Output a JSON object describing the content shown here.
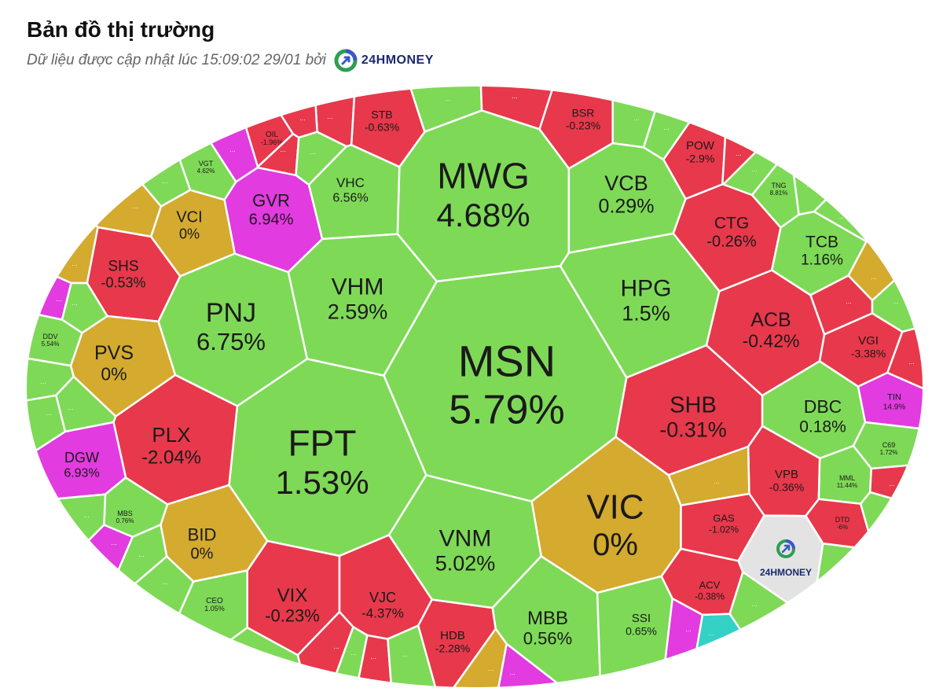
{
  "header": {
    "title": "Bản đồ thị trường",
    "subtitle": "Dữ liệu được cập nhật lúc 15:09:02 29/01 bởi",
    "brand": "24HMONEY"
  },
  "colors": {
    "up": "#7ed957",
    "down": "#e8384b",
    "flat": "#d4aa2f",
    "ceiling": "#e23be0",
    "floor": "#34d1c6",
    "watermark": "#e3e3e3"
  },
  "chart_data": {
    "type": "treemap",
    "watermark": "24HMONEY",
    "cells": [
      {
        "label": "MSN",
        "value": "5.79%",
        "status": "up"
      },
      {
        "label": "MWG",
        "value": "4.68%",
        "status": "up"
      },
      {
        "label": "FPT",
        "value": "1.53%",
        "status": "up"
      },
      {
        "label": "VIC",
        "value": "0%",
        "status": "flat"
      },
      {
        "label": "VNM",
        "value": "5.02%",
        "status": "up"
      },
      {
        "label": "VHM",
        "value": "2.59%",
        "status": "up"
      },
      {
        "label": "HPG",
        "value": "1.5%",
        "status": "up"
      },
      {
        "label": "VCB",
        "value": "0.29%",
        "status": "up"
      },
      {
        "label": "PNJ",
        "value": "6.75%",
        "status": "up"
      },
      {
        "label": "SHB",
        "value": "-0.31%",
        "status": "down"
      },
      {
        "label": "MBB",
        "value": "0.56%",
        "status": "up"
      },
      {
        "label": "PLX",
        "value": "-2.04%",
        "status": "down"
      },
      {
        "label": "ACB",
        "value": "-0.42%",
        "status": "down"
      },
      {
        "label": "CTG",
        "value": "-0.26%",
        "status": "down"
      },
      {
        "label": "GVR",
        "value": "6.94%",
        "status": "ceiling"
      },
      {
        "label": "VIX",
        "value": "-0.23%",
        "status": "down"
      },
      {
        "label": "VJC",
        "value": "-4.37%",
        "status": "down"
      },
      {
        "label": "SHS",
        "value": "-0.53%",
        "status": "down"
      },
      {
        "label": "PVS",
        "value": "0%",
        "status": "flat"
      },
      {
        "label": "TCB",
        "value": "1.16%",
        "status": "up"
      },
      {
        "label": "DBC",
        "value": "0.18%",
        "status": "up"
      },
      {
        "label": "VHC",
        "value": "6.56%",
        "status": "up"
      },
      {
        "label": "BID",
        "value": "0%",
        "status": "flat"
      },
      {
        "label": "VCI",
        "value": "0%",
        "status": "flat"
      },
      {
        "label": "STB",
        "value": "-0.63%",
        "status": "down"
      },
      {
        "label": "BSR",
        "value": "-0.23%",
        "status": "down"
      },
      {
        "label": "POW",
        "value": "-2.9%",
        "status": "down"
      },
      {
        "label": "DGW",
        "value": "6.93%",
        "status": "ceiling"
      },
      {
        "label": "HDB",
        "value": "-2.28%",
        "status": "down"
      },
      {
        "label": "VPB",
        "value": "-0.36%",
        "status": "down"
      },
      {
        "label": "SSI",
        "value": "0.65%",
        "status": "up"
      },
      {
        "label": "VGI",
        "value": "-3.38%",
        "status": "down"
      },
      {
        "label": "ACV",
        "value": "-0.38%",
        "status": "down"
      },
      {
        "label": "GAS",
        "value": "-1.02%",
        "status": "down"
      },
      {
        "label": "OIL",
        "value": "-1.96%",
        "status": "down"
      },
      {
        "label": "TIN",
        "value": "14.9%",
        "status": "ceiling"
      },
      {
        "label": "VGT",
        "value": "4.62%",
        "status": "up"
      },
      {
        "label": "TNG",
        "value": "8.81%",
        "status": "up"
      },
      {
        "label": "DDV",
        "value": "5.54%",
        "status": "up"
      },
      {
        "label": "MBS",
        "value": "0.76%",
        "status": "up"
      },
      {
        "label": "CEO",
        "value": "1.05%",
        "status": "up"
      },
      {
        "label": "C69",
        "value": "1.72%",
        "status": "up"
      },
      {
        "label": "MML",
        "value": "11.44%",
        "status": "up"
      },
      {
        "label": "DTD",
        "value": "-6%",
        "status": "down"
      }
    ],
    "small_cells_label": "..."
  }
}
